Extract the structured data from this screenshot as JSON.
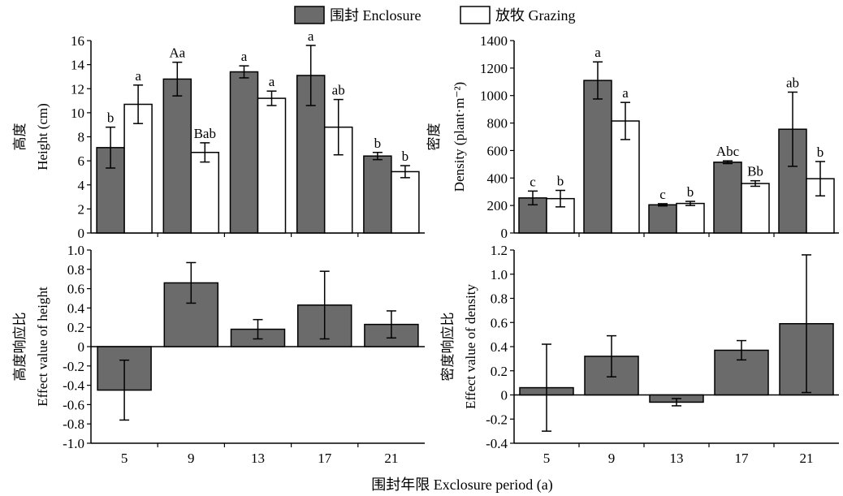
{
  "legend": {
    "enclosure_label": "围封 Enclosure",
    "grazing_label": "放牧 Grazing",
    "enclosure_color": "#6b6b6b",
    "grazing_color": "#ffffff"
  },
  "x_axis_title": "围封年限 Exclosure period (a)",
  "chart_data": [
    {
      "id": "height",
      "type": "bar",
      "ylabel_cn": "高度",
      "ylabel_en": "Height (cm)",
      "ylim": [
        0,
        16
      ],
      "yticks": [
        0,
        2,
        4,
        6,
        8,
        10,
        12,
        14,
        16
      ],
      "categories": [
        "5",
        "9",
        "13",
        "17",
        "21"
      ],
      "series": [
        {
          "name": "围封 Enclosure",
          "values": [
            7.1,
            12.8,
            13.4,
            13.1,
            6.4
          ],
          "errors": [
            1.7,
            1.4,
            0.5,
            2.5,
            0.3
          ],
          "labels": [
            "b",
            "Aa",
            "a",
            "a",
            "b"
          ]
        },
        {
          "name": "放牧 Grazing",
          "values": [
            10.7,
            6.7,
            11.2,
            8.8,
            5.1
          ],
          "errors": [
            1.6,
            0.8,
            0.6,
            2.3,
            0.5
          ],
          "labels": [
            "a",
            "Bab",
            "a",
            "ab",
            "b"
          ]
        }
      ]
    },
    {
      "id": "density",
      "type": "bar",
      "ylabel_cn": "密度",
      "ylabel_en": "Density (plant·m⁻²)",
      "ylim": [
        0,
        1400
      ],
      "yticks": [
        0,
        200,
        400,
        600,
        800,
        1000,
        1200,
        1400
      ],
      "categories": [
        "5",
        "9",
        "13",
        "17",
        "21"
      ],
      "series": [
        {
          "name": "围封 Enclosure",
          "values": [
            255,
            1110,
            205,
            515,
            755
          ],
          "errors": [
            50,
            135,
            8,
            10,
            270
          ],
          "labels": [
            "c",
            "a",
            "c",
            "Abc",
            "ab"
          ]
        },
        {
          "name": "放牧 Grazing",
          "values": [
            250,
            815,
            215,
            360,
            395
          ],
          "errors": [
            60,
            135,
            15,
            20,
            125
          ],
          "labels": [
            "b",
            "a",
            "b",
            "Bb",
            "b"
          ]
        }
      ]
    },
    {
      "id": "height_effect",
      "type": "bar",
      "ylabel_cn": "高度响应比",
      "ylabel_en": "Effect value of height",
      "ylim": [
        -1.0,
        1.0
      ],
      "yticks": [
        -1.0,
        -0.8,
        -0.6,
        -0.4,
        -0.2,
        0,
        0.2,
        0.4,
        0.6,
        0.8,
        1.0
      ],
      "ytick_labels": [
        "-1.0",
        "-0.8",
        "-0.6",
        "-0.4",
        "-0.2",
        "0",
        "0.2",
        "0.4",
        "0.6",
        "0.8",
        "1.0"
      ],
      "categories": [
        "5",
        "9",
        "13",
        "17",
        "21"
      ],
      "values": [
        -0.45,
        0.66,
        0.18,
        0.43,
        0.23
      ],
      "errors": [
        0.31,
        0.21,
        0.1,
        0.35,
        0.14
      ]
    },
    {
      "id": "density_effect",
      "type": "bar",
      "ylabel_cn": "密度响应比",
      "ylabel_en": "Effect value of density",
      "ylim": [
        -0.4,
        1.2
      ],
      "yticks": [
        -0.4,
        -0.2,
        0,
        0.2,
        0.4,
        0.6,
        0.8,
        1.0,
        1.2
      ],
      "ytick_labels": [
        "-0.4",
        "-0.2",
        "0",
        "0.2",
        "0.4",
        "0.6",
        "0.8",
        "1.0",
        "1.2"
      ],
      "categories": [
        "5",
        "9",
        "13",
        "17",
        "21"
      ],
      "values": [
        0.06,
        0.32,
        -0.06,
        0.37,
        0.59
      ],
      "errors": [
        0.36,
        0.17,
        0.03,
        0.08,
        0.57
      ]
    }
  ]
}
